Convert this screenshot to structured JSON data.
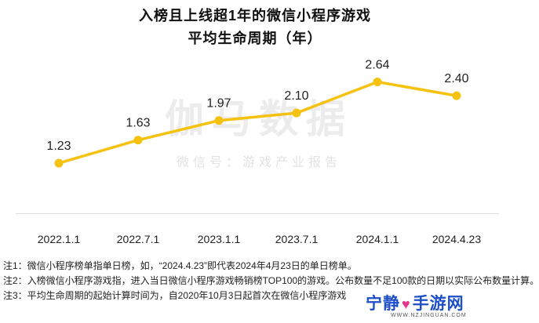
{
  "title_line1": "入榜且上线超1年的微信小程序游戏",
  "title_line2": "平均生命周期（年）",
  "watermark": {
    "main": "伽马数据",
    "sub": "微信号：游戏产业报告"
  },
  "chart_data": {
    "type": "line",
    "title": "入榜且上线超1年的微信小程序游戏 平均生命周期（年）",
    "categories": [
      "2022.1.1",
      "2022.7.1",
      "2023.1.1",
      "2023.7.1",
      "2024.1.1",
      "2024.4.23"
    ],
    "series": [
      {
        "values": [
          1.23,
          1.63,
          1.97,
          2.1,
          2.64,
          2.4
        ]
      }
    ],
    "ylim": [
      0.7,
      2.9
    ],
    "grid": false,
    "legend": "none",
    "colors": {
      "line": "#f5c210",
      "axis": "#dddddd"
    }
  },
  "notes": [
    "注1：微信小程序榜单指单日榜，如，“2024.4.23”即代表2024年4月23日的单日榜单。",
    "注2：入榜微信小程序游戏指，进入当日微信小程序游戏畅销榜TOP100的游戏。公布数量不足100款的日期以实际公布数量计算。",
    "注3：平均生命周期的起始计算时间为，自2020年10月3日起首次在微信小程序游戏"
  ],
  "logo": {
    "name_left": "宁静",
    "name_right": "手游网",
    "url": "WWW.NZJINGUAN.COM"
  }
}
